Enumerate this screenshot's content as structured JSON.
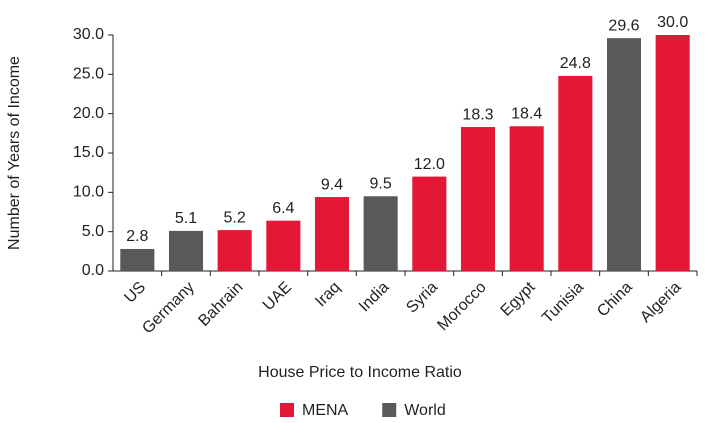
{
  "chart_data": {
    "type": "bar",
    "x_label": "House Price to Income Ratio",
    "y_label": "Number of Years of Income",
    "categories": [
      "US",
      "Germany",
      "Bahrain",
      "UAE",
      "Iraq",
      "India",
      "Syria",
      "Morocco",
      "Egypt",
      "Tunisia",
      "China",
      "Algeria"
    ],
    "series": [
      {
        "name": "MENA",
        "color": "#e31837",
        "values": [
          null,
          null,
          5.2,
          6.4,
          9.4,
          null,
          12.0,
          18.3,
          18.4,
          24.8,
          null,
          30.0
        ],
        "value_labels": [
          null,
          null,
          "5.2",
          "6.4",
          "9.4",
          null,
          "12.0",
          "18.3",
          "18.4",
          "24.8",
          null,
          "30.0"
        ]
      },
      {
        "name": "World",
        "color": "#58595b",
        "values": [
          2.8,
          5.1,
          null,
          null,
          null,
          9.5,
          null,
          null,
          null,
          null,
          29.6,
          null
        ],
        "value_labels": [
          "2.8",
          "5.1",
          null,
          null,
          null,
          "9.5",
          null,
          null,
          null,
          null,
          "29.6",
          null
        ]
      }
    ],
    "ylim": [
      0,
      30
    ],
    "yticks": [
      {
        "value": 0,
        "label": "0.0"
      },
      {
        "value": 5,
        "label": "5.0"
      },
      {
        "value": 10,
        "label": "10.0"
      },
      {
        "value": 15,
        "label": "15.0"
      },
      {
        "value": 20,
        "label": "20.0"
      },
      {
        "value": 25,
        "label": "25.0"
      },
      {
        "value": 30,
        "label": "30.0"
      }
    ],
    "legend": "bottom"
  }
}
